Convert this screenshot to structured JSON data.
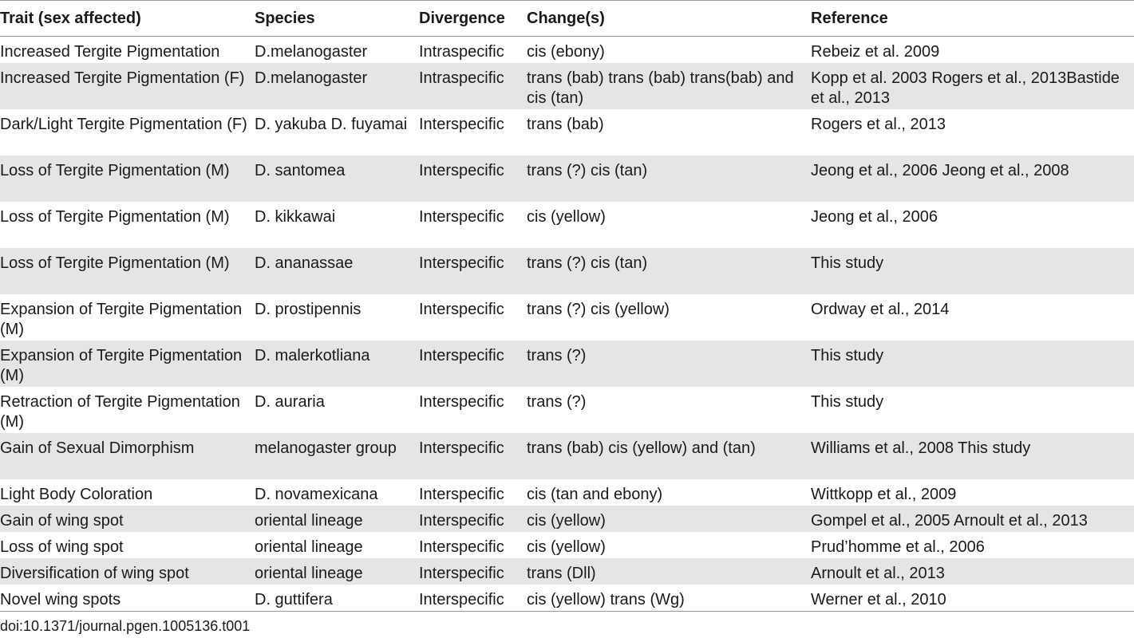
{
  "table": {
    "headers": [
      "Trait (sex affected)",
      "Species",
      "Divergence",
      "Change(s)",
      "Reference"
    ],
    "rows": [
      {
        "trait": "Increased Tergite Pigmentation",
        "species": "D.melanogaster",
        "divergence": "Intraspecific",
        "changes": "cis (ebony)",
        "reference": "Rebeiz et al. 2009"
      },
      {
        "trait": "Increased Tergite Pigmentation (F)",
        "species": "D.melanogaster",
        "divergence": "Intraspecific",
        "changes": "trans (bab) trans (bab) trans(bab) and cis (tan)",
        "reference": "Kopp et al. 2003 Rogers et al., 2013Bastide et al., 2013"
      },
      {
        "trait": "Dark/Light Tergite Pigmentation (F)",
        "species": "D. yakuba D. fuyamai",
        "divergence": "Interspecific",
        "changes": "trans (bab)",
        "reference": "Rogers et al., 2013"
      },
      {
        "trait": "Loss of Tergite Pigmentation (M)",
        "species": "D. santomea",
        "divergence": "Interspecific",
        "changes": "trans (?) cis (tan)",
        "reference": "Jeong et al., 2006 Jeong et al., 2008"
      },
      {
        "trait": "Loss of Tergite Pigmentation (M)",
        "species": "D. kikkawai",
        "divergence": "Interspecific",
        "changes": "cis (yellow)",
        "reference": "Jeong et al., 2006"
      },
      {
        "trait": "Loss of Tergite Pigmentation (M)",
        "species": "D. ananassae",
        "divergence": "Interspecific",
        "changes": "trans (?) cis (tan)",
        "reference": "This study"
      },
      {
        "trait": "Expansion of Tergite Pigmentation (M)",
        "species": "D. prostipennis",
        "divergence": "Interspecific",
        "changes": "trans (?) cis (yellow)",
        "reference": "Ordway et al., 2014"
      },
      {
        "trait": "Expansion of Tergite Pigmentation (M)",
        "species": "D. malerkotliana",
        "divergence": "Interspecific",
        "changes": "trans (?)",
        "reference": "This study"
      },
      {
        "trait": "Retraction of Tergite Pigmentation (M)",
        "species": "D. auraria",
        "divergence": "Interspecific",
        "changes": "trans (?)",
        "reference": "This study"
      },
      {
        "trait": "Gain of Sexual Dimorphism",
        "species": "melanogaster group",
        "divergence": "Interspecific",
        "changes": "trans (bab) cis (yellow) and (tan)",
        "reference": "Williams et al., 2008 This study"
      },
      {
        "trait": "Light Body Coloration",
        "species": "D. novamexicana",
        "divergence": "Interspecific",
        "changes": "cis (tan and ebony)",
        "reference": "Wittkopp et al., 2009"
      },
      {
        "trait": "Gain of wing spot",
        "species": "oriental lineage",
        "divergence": "Interspecific",
        "changes": "cis (yellow)",
        "reference": "Gompel et al., 2005 Arnoult et al., 2013"
      },
      {
        "trait": "Loss of wing spot",
        "species": "oriental lineage",
        "divergence": "Interspecific",
        "changes": "cis (yellow)",
        "reference": "Prud’homme et al., 2006"
      },
      {
        "trait": "Diversification of wing spot",
        "species": "oriental lineage",
        "divergence": "Interspecific",
        "changes": "trans (Dll)",
        "reference": "Arnoult et al., 2013"
      },
      {
        "trait": "Novel wing spots",
        "species": "D. guttifera",
        "divergence": "Interspecific",
        "changes": "cis (yellow) trans (Wg)",
        "reference": "Werner et al., 2010"
      }
    ]
  },
  "footer": {
    "doi": "doi:10.1371/journal.pgen.1005136.t001"
  },
  "colors": {
    "shade": "#e5e5e5",
    "rule": "#9a9a9a",
    "text": "#1a1a1a"
  }
}
